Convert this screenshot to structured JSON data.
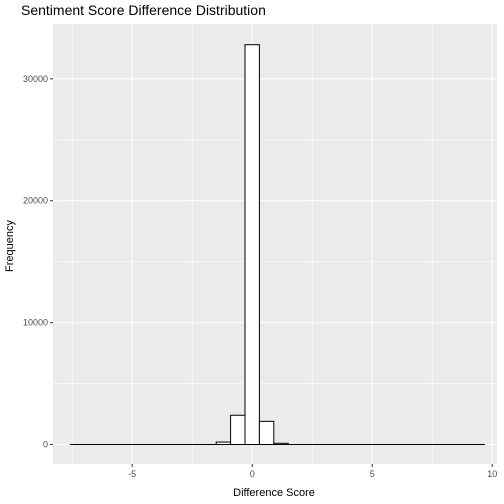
{
  "chart_data": {
    "type": "bar",
    "title": "Sentiment Score Difference Distribution",
    "xlabel": "Difference Score",
    "ylabel": "Frequency",
    "xlim": [
      -8.3,
      10.2
    ],
    "ylim": [
      -1600,
      34500
    ],
    "x_ticks": [
      -5,
      0,
      5,
      10
    ],
    "x_tick_labels": [
      "-5",
      "0",
      "5",
      "10"
    ],
    "y_ticks": [
      0,
      10000,
      20000,
      30000
    ],
    "y_tick_labels": [
      "0",
      "10000",
      "20000",
      "30000"
    ],
    "grid": true,
    "bin_width": 0.6,
    "bins": [
      {
        "x0": -1.5,
        "x1": -0.9,
        "count": 200
      },
      {
        "x0": -0.9,
        "x1": -0.3,
        "count": 2400
      },
      {
        "x0": -0.3,
        "x1": 0.3,
        "count": 32800
      },
      {
        "x0": 0.3,
        "x1": 0.9,
        "count": 1900
      },
      {
        "x0": 0.9,
        "x1": 1.5,
        "count": 100
      }
    ],
    "zero_range": [
      -7.6,
      9.7
    ],
    "bar_fill": "#ffffff",
    "bar_stroke": "#000000",
    "panel_background": "#ebebeb",
    "grid_color": "#ffffff"
  }
}
